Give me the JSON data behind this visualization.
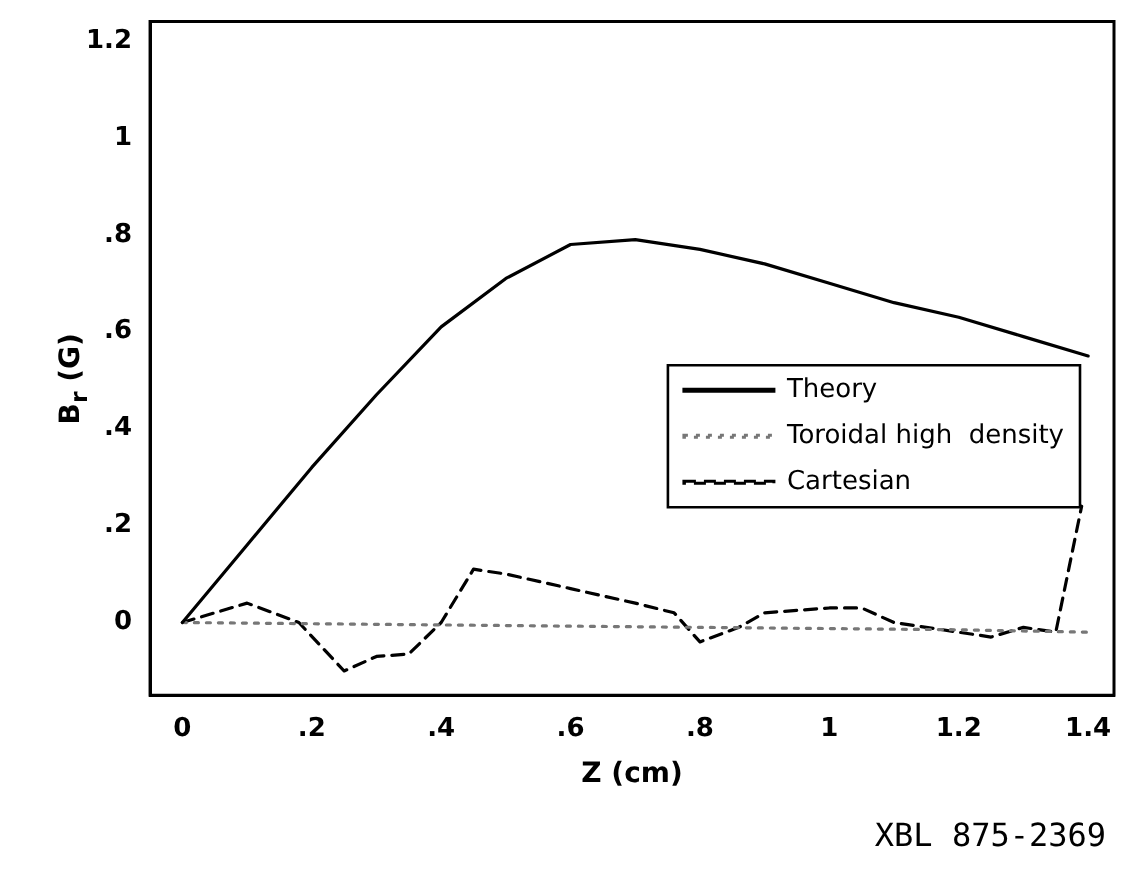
{
  "chart_data": {
    "type": "line",
    "xlabel": "Z (cm)",
    "ylabel": "B$_{r}$ (G)",
    "annotations": [
      "XBL 875-2369"
    ],
    "xlim": [
      -0.05,
      1.44
    ],
    "ylim": [
      -0.15,
      1.24
    ],
    "xticks": [
      0,
      {
        "value": 0.2,
        "label": ".2"
      },
      {
        "value": 0.4,
        "label": ".4"
      },
      {
        "value": 0.6,
        "label": ".6"
      },
      {
        "value": 0.8,
        "label": ".8"
      },
      1,
      1.2,
      1.4
    ],
    "yticks": [
      0,
      {
        "value": 0.2,
        "label": ".2"
      },
      {
        "value": 0.4,
        "label": ".4"
      },
      {
        "value": 0.6,
        "label": ".6"
      },
      {
        "value": 0.8,
        "label": ".8"
      },
      1,
      1.2
    ],
    "grid": false,
    "legend": "bottom right",
    "marker": "none",
    "series": [
      {
        "name": "Theory",
        "color": "#000000",
        "line_style": "solid",
        "x": [
          0,
          0.1,
          0.2,
          0.3,
          0.4,
          0.5,
          0.6,
          0.7,
          0.8,
          0.9,
          1.0,
          1.1,
          1.2,
          1.3,
          1.4
        ],
        "values": [
          0,
          0.16,
          0.32,
          0.47,
          0.61,
          0.71,
          0.78,
          0.79,
          0.77,
          0.74,
          0.7,
          0.66,
          0.63,
          0.59,
          0.55
        ]
      },
      {
        "name": "Toroidal high  density",
        "color": "#777777",
        "line_style": "dotted",
        "x": [
          0,
          0.4,
          0.8,
          1.2,
          1.4
        ],
        "values": [
          0,
          -0.005,
          -0.01,
          -0.015,
          -0.02
        ]
      },
      {
        "name": "Cartesian",
        "color": "#000000",
        "line_style": "dashed",
        "x": [
          0,
          0.1,
          0.18,
          0.25,
          0.3,
          0.35,
          0.4,
          0.45,
          0.5,
          0.6,
          0.7,
          0.76,
          0.8,
          0.86,
          0.9,
          1.0,
          1.05,
          1.1,
          1.2,
          1.25,
          1.3,
          1.35,
          1.39
        ],
        "values": [
          0,
          0.04,
          0,
          -0.1,
          -0.07,
          -0.065,
          0,
          0.11,
          0.1,
          0.07,
          0.04,
          0.02,
          -0.04,
          -0.01,
          0.02,
          0.03,
          0.03,
          0,
          -0.02,
          -0.03,
          -0.01,
          -0.02,
          0.24
        ]
      }
    ]
  }
}
